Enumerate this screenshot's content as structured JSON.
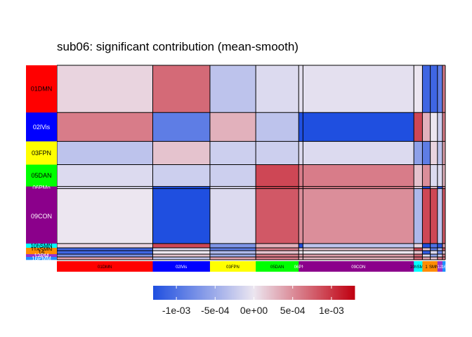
{
  "chart_data": {
    "type": "heatmap",
    "title": "sub06: significant contribution (mean-smooth)",
    "networks": [
      {
        "label": "01DMN",
        "color": "#ff0000",
        "col_label_shown": "01DMN"
      },
      {
        "label": "02lVis",
        "color": "#0000ff",
        "col_label_shown": "02lVis"
      },
      {
        "label": "03FPN",
        "color": "#ffff00",
        "col_label_shown": "03FPN"
      },
      {
        "label": "05DAN",
        "color": "#00ff00",
        "col_label_shown": "05DAN"
      },
      {
        "label": "06PMo",
        "color": "#8b008b",
        "col_label_shown": "06PMo"
      },
      {
        "label": "09CON",
        "color": "#8b008b",
        "col_label_shown": "09CON"
      },
      {
        "label": "10hSMN",
        "color": "#00ffff",
        "col_label_shown": "10hSMN"
      },
      {
        "label": "11aSMN",
        "color": "#ff8c00",
        "col_label_shown": "1"
      },
      {
        "label": "16",
        "color": "#ff8c00",
        "col_label_shown": "SMN"
      },
      {
        "label": "12PM",
        "color": "#9932cc",
        "col_label_shown": "12"
      },
      {
        "label": "16PMM",
        "color": "#1e90ff",
        "col_label_shown": "16"
      }
    ],
    "col_sizes": [
      134,
      80,
      64,
      60,
      6,
      155,
      12,
      11,
      10,
      7,
      4
    ],
    "row_sizes": [
      67,
      41,
      33,
      31,
      3,
      78,
      6,
      4,
      5,
      4,
      4
    ],
    "matrix": [
      [
        0.0001,
        0.0007,
        -0.0003,
        -0.0001,
        -5e-05,
        -5e-05,
        0.0,
        -0.0011,
        -0.0011,
        -0.0009,
        0.0006
      ],
      [
        0.0006,
        -0.0009,
        0.0003,
        -0.0003,
        -0.0013,
        -0.0013,
        0.0009,
        0.0003,
        0.0,
        -0.0002,
        0.0006
      ],
      [
        -0.0003,
        0.0002,
        -0.0002,
        -0.0002,
        -0.0001,
        -0.0001,
        -0.0006,
        -0.0009,
        0.0001,
        -0.0003,
        0.0004
      ],
      [
        -0.0001,
        -0.0002,
        -0.0002,
        0.0009,
        0.0006,
        0.0006,
        0.0002,
        0.0005,
        -0.0001,
        -0.0001,
        0.0003
      ],
      [
        -0.0001,
        -0.0013,
        -0.0001,
        0.0009,
        0.0006,
        0.0006,
        0.0001,
        -0.0013,
        0.0002,
        -0.0012,
        0.0005
      ],
      [
        0.0,
        -0.0013,
        -0.0001,
        0.0008,
        0.0005,
        0.0005,
        -0.0004,
        0.0009,
        0.0009,
        -0.0003,
        0.0008
      ],
      [
        0.0001,
        0.0009,
        -0.0007,
        0.0003,
        -0.0013,
        -0.0003,
        0.0001,
        -0.0013,
        -0.001,
        -0.0012,
        0.0004
      ],
      [
        -0.0011,
        -0.0001,
        -0.0009,
        0.0006,
        0.0001,
        0.0002,
        0.0009,
        0.0002,
        -0.0009,
        -0.0004,
        0.0008
      ],
      [
        -0.0011,
        0.0,
        -0.0004,
        0.0002,
        0.0,
        0.0,
        0.0002,
        -0.0012,
        -0.0001,
        -0.0008,
        0.0002
      ],
      [
        -0.0007,
        0.0002,
        -0.0005,
        0.0006,
        0.0004,
        0.0004,
        0.0007,
        -0.0001,
        -0.0006,
        -0.0002,
        0.0006
      ],
      [
        0.0004,
        -0.0003,
        0.0004,
        0.0006,
        0.0003,
        0.0003,
        0.0007,
        0.0004,
        0.0002,
        0.0006,
        0.0006
      ]
    ],
    "color_scale": {
      "low": "#1f4fe0",
      "mid": "#ece6f0",
      "high": "#c00010",
      "limits": [
        -0.0013,
        0.0013
      ],
      "ticks": [
        -0.001,
        -0.0005,
        0,
        0.0005,
        0.001
      ],
      "tick_labels": [
        "-1e-03",
        "-5e-04",
        "0e+00",
        "5e-04",
        "1e-03"
      ]
    },
    "legend_position": "bottom"
  }
}
